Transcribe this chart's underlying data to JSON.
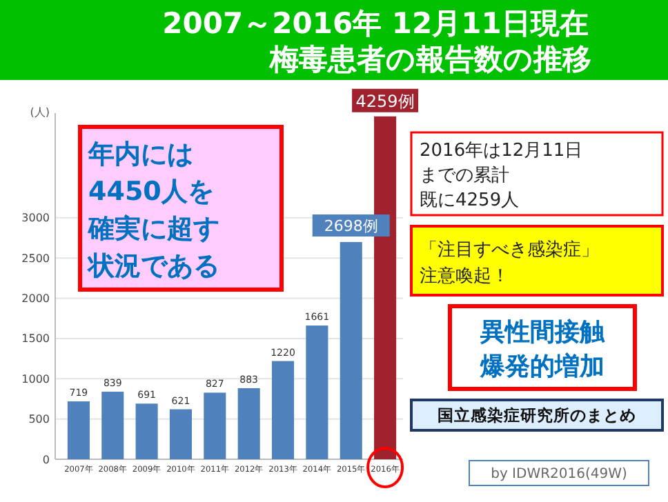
{
  "chart_data": {
    "type": "bar",
    "title": "2007～2016年 12月11日現在",
    "subtitle": "梅毒患者の報告数の推移",
    "ylabel": "(人)",
    "categories": [
      "2007年",
      "2008年",
      "2009年",
      "2010年",
      "2011年",
      "2012年",
      "2013年",
      "2014年",
      "2015年",
      "2016年"
    ],
    "values": [
      719,
      839,
      691,
      621,
      827,
      883,
      1220,
      1661,
      2698,
      4259
    ],
    "colors": [
      "#4f81bd",
      "#4f81bd",
      "#4f81bd",
      "#4f81bd",
      "#4f81bd",
      "#4f81bd",
      "#4f81bd",
      "#4f81bd",
      "#4f81bd",
      "#a0222e"
    ],
    "value_labels": [
      "719",
      "839",
      "691",
      "621",
      "827",
      "883",
      "1220",
      "1661",
      "2698例",
      "4259例"
    ],
    "ylim": [
      0,
      4300
    ],
    "yticks": [
      0,
      500,
      1000,
      1500,
      2000,
      2500,
      3000
    ],
    "grid": "y",
    "annotations": [
      "年内には4450人を確実に超す状況である",
      "2016年は12月11日までの累計既に4259人",
      "「注目すべき感染症」注意喚起！",
      "異性間接触爆発的増加",
      "国立感染症研究所のまとめ",
      "by IDWR2016(49W)"
    ]
  }
}
